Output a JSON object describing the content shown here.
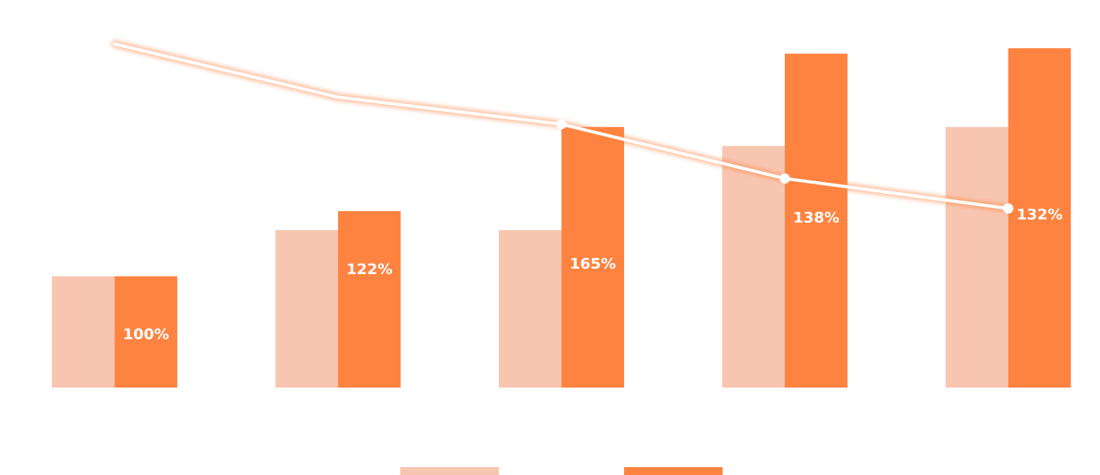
{
  "chart_data": {
    "type": "bar",
    "categories": [
      "",
      "",
      "",
      "",
      ""
    ],
    "series": [
      {
        "values": [
          41,
          58,
          58,
          89,
          96
        ],
        "color": "#f8c6b0",
        "kind": "bar"
      },
      {
        "values": [
          41,
          65,
          96,
          123,
          125
        ],
        "color": "#ff8340",
        "kind": "bar"
      },
      {
        "values": [
          126,
          107,
          97,
          77,
          66
        ],
        "color": "#ffffff",
        "kind": "line",
        "point_labels": [
          "100%",
          "122%",
          "165%",
          "138%",
          "132%"
        ]
      }
    ],
    "ylim": [
      0,
      130
    ],
    "grid": false,
    "legend": "bottom",
    "title": "",
    "xlabel": "",
    "ylabel": ""
  }
}
